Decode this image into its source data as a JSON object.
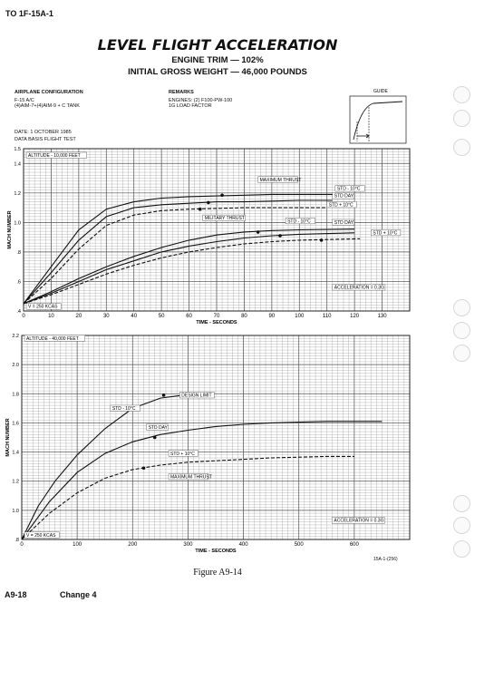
{
  "header": {
    "doc_id": "TO 1F-15A-1"
  },
  "title": "LEVEL FLIGHT ACCELERATION",
  "subtitle1": "ENGINE TRIM — 102%",
  "subtitle2": "INITIAL GROSS WEIGHT — 46,000 POUNDS",
  "config": {
    "heading": "AIRPLANE CONFIGURATION",
    "line1": "F-15 A/C",
    "line2": "(4)AIM-7+(4)AIM-9 + C TANK"
  },
  "remarks": {
    "heading": "REMARKS",
    "line1": "ENGINES: (2) F100-PW-100",
    "line2": "1G LOAD FACTOR"
  },
  "guide": {
    "label": "GUIDE"
  },
  "date": {
    "line1": "DATE:  1 OCTOBER 1985",
    "line2": "DATA BASIS FLIGHT TEST"
  },
  "caption": "Figure A9-14",
  "footer": {
    "page": "A9-18",
    "change": "Change 4",
    "id": "15A-1-(256)"
  },
  "colors": {
    "grid": "#9a9a9a",
    "curve": "#111111",
    "paper": "#ffffff"
  },
  "chart_data": [
    {
      "type": "line",
      "xlabel": "TIME - SECONDS",
      "ylabel": "MACH NUMBER",
      "xlim": [
        0,
        140
      ],
      "ylim": [
        0.4,
        1.5
      ],
      "xticks": [
        0,
        10,
        20,
        30,
        40,
        50,
        60,
        70,
        80,
        90,
        100,
        110,
        120,
        130
      ],
      "yticks": [
        0.4,
        0.6,
        0.8,
        1.0,
        1.2,
        1.4,
        1.5
      ],
      "ytick_labels": [
        ".4",
        ".6",
        ".8",
        "1.0",
        "1.2",
        "1.4",
        "1.5"
      ],
      "grid": true,
      "annotations": [
        {
          "text": "ALTITUDE - 10,000 FEET",
          "x": 1,
          "y": 1.445
        },
        {
          "text": "MAXIMUM THRUST",
          "x": 85,
          "y": 1.28
        },
        {
          "text": "STD - 10°C",
          "x": 113,
          "y": 1.22
        },
        {
          "text": "STD DAY",
          "x": 112,
          "y": 1.17
        },
        {
          "text": "STD + 10°C",
          "x": 110,
          "y": 1.11
        },
        {
          "text": "MILITARY THRUST",
          "x": 65,
          "y": 1.02
        },
        {
          "text": "STD - 10°C",
          "x": 95,
          "y": 1.0
        },
        {
          "text": "STD DAY",
          "x": 112,
          "y": 0.99
        },
        {
          "text": "STD + 10°C",
          "x": 126,
          "y": 0.92
        },
        {
          "text": "ACCELERATION = 0.3G",
          "x": 112,
          "y": 0.55
        },
        {
          "text": "V = 250 KCAS",
          "x": 1,
          "y": 0.42
        }
      ],
      "series": [
        {
          "name": "MAXIMUM THRUST STD - 10°C",
          "x": [
            0,
            10,
            20,
            30,
            40,
            50,
            60,
            70,
            80,
            90,
            100,
            112
          ],
          "y": [
            0.45,
            0.7,
            0.95,
            1.09,
            1.14,
            1.165,
            1.175,
            1.18,
            1.185,
            1.19,
            1.19,
            1.19
          ],
          "dash": "solid",
          "marker": {
            "x": 72,
            "y": 1.185
          }
        },
        {
          "name": "MAXIMUM THRUST STD DAY",
          "x": [
            0,
            10,
            20,
            30,
            40,
            50,
            60,
            70,
            80,
            90,
            100,
            112
          ],
          "y": [
            0.45,
            0.66,
            0.88,
            1.04,
            1.1,
            1.12,
            1.13,
            1.14,
            1.14,
            1.145,
            1.15,
            1.15
          ],
          "dash": "solid",
          "marker": {
            "x": 67,
            "y": 1.135
          }
        },
        {
          "name": "MAXIMUM THRUST STD + 10°C",
          "x": [
            0,
            10,
            20,
            30,
            40,
            50,
            60,
            70,
            80,
            90,
            100,
            110
          ],
          "y": [
            0.45,
            0.62,
            0.82,
            0.98,
            1.05,
            1.08,
            1.09,
            1.095,
            1.1,
            1.1,
            1.1,
            1.1
          ],
          "dash": "dashed",
          "marker": {
            "x": 64,
            "y": 1.09
          }
        },
        {
          "name": "MILITARY THRUST STD - 10°C",
          "x": [
            0,
            10,
            20,
            30,
            40,
            50,
            60,
            70,
            80,
            90,
            100,
            120
          ],
          "y": [
            0.45,
            0.53,
            0.62,
            0.7,
            0.77,
            0.83,
            0.88,
            0.915,
            0.935,
            0.945,
            0.95,
            0.955
          ],
          "dash": "solid",
          "marker": {
            "x": 85,
            "y": 0.935
          }
        },
        {
          "name": "MILITARY THRUST STD DAY",
          "x": [
            0,
            10,
            20,
            30,
            40,
            50,
            60,
            70,
            80,
            90,
            100,
            120
          ],
          "y": [
            0.45,
            0.52,
            0.6,
            0.68,
            0.74,
            0.8,
            0.84,
            0.87,
            0.895,
            0.91,
            0.92,
            0.93
          ],
          "dash": "solid",
          "marker": {
            "x": 93,
            "y": 0.91
          }
        },
        {
          "name": "MILITARY THRUST STD + 10°C",
          "x": [
            0,
            10,
            20,
            30,
            40,
            50,
            60,
            70,
            80,
            90,
            100,
            122
          ],
          "y": [
            0.45,
            0.51,
            0.58,
            0.65,
            0.71,
            0.76,
            0.8,
            0.83,
            0.855,
            0.87,
            0.88,
            0.89
          ],
          "dash": "dashed",
          "marker": {
            "x": 108,
            "y": 0.88
          }
        }
      ]
    },
    {
      "type": "line",
      "xlabel": "TIME - SECONDS",
      "ylabel": "MACH NUMBER",
      "xlim": [
        0,
        700
      ],
      "ylim": [
        0.8,
        2.2
      ],
      "xticks": [
        0,
        100,
        200,
        300,
        400,
        500,
        600
      ],
      "yticks": [
        0.8,
        1.0,
        1.2,
        1.4,
        1.6,
        1.8,
        2.0,
        2.2
      ],
      "ytick_labels": [
        ".8",
        "1.0",
        "1.2",
        "1.4",
        "1.6",
        "1.8",
        "2.0",
        "2.2"
      ],
      "grid": true,
      "annotations": [
        {
          "text": "ALTITUDE - 40,000 FEET",
          "x": 5,
          "y": 2.17
        },
        {
          "text": "DESIGN LIMIT",
          "x": 285,
          "y": 1.78
        },
        {
          "text": "STD - 10°C",
          "x": 160,
          "y": 1.69
        },
        {
          "text": "STD DAY",
          "x": 225,
          "y": 1.56
        },
        {
          "text": "STD + 10°C",
          "x": 265,
          "y": 1.38
        },
        {
          "text": "MAXIMUM THRUST",
          "x": 265,
          "y": 1.22
        },
        {
          "text": "ACCELERATION = 0.3G",
          "x": 560,
          "y": 0.92
        },
        {
          "text": "V = 250 KCAS",
          "x": 5,
          "y": 0.82
        }
      ],
      "series": [
        {
          "name": "STD - 10°C",
          "x": [
            0,
            30,
            60,
            100,
            150,
            200,
            250,
            290,
            310
          ],
          "y": [
            0.8,
            1.03,
            1.2,
            1.38,
            1.56,
            1.7,
            1.77,
            1.79,
            1.79
          ],
          "dash": "solid",
          "marker": {
            "x": 256,
            "y": 1.79
          }
        },
        {
          "name": "STD DAY",
          "x": [
            0,
            50,
            100,
            150,
            200,
            250,
            300,
            350,
            400,
            450,
            500,
            550,
            650
          ],
          "y": [
            0.8,
            1.06,
            1.26,
            1.39,
            1.47,
            1.52,
            1.55,
            1.575,
            1.59,
            1.6,
            1.605,
            1.61,
            1.61
          ],
          "dash": "solid",
          "marker": {
            "x": 240,
            "y": 1.5
          }
        },
        {
          "name": "STD + 10°C",
          "x": [
            0,
            50,
            100,
            150,
            200,
            250,
            300,
            350,
            400,
            450,
            500,
            550,
            600
          ],
          "y": [
            0.8,
            0.98,
            1.12,
            1.22,
            1.28,
            1.31,
            1.33,
            1.34,
            1.35,
            1.36,
            1.365,
            1.37,
            1.37
          ],
          "dash": "dashed",
          "marker": {
            "x": 220,
            "y": 1.29
          }
        }
      ]
    }
  ]
}
